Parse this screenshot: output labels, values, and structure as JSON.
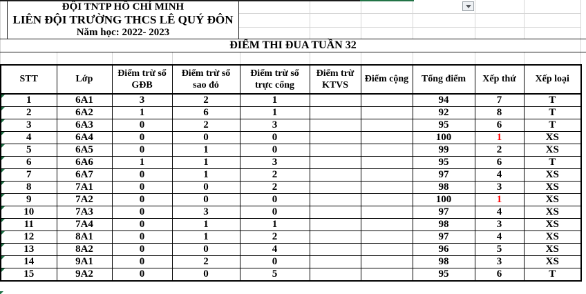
{
  "org": {
    "line1": "ĐỘI TNTP HỒ CHÍ MINH",
    "line2": "LIÊN ĐỘI TRƯỜNG THCS LÊ QUÝ ĐÔN",
    "line3": "Năm học: 2022- 2023"
  },
  "title": "ĐIỂM THI ĐUA TUẦN 32",
  "icons": {
    "dropdown": "chevron-down-icon",
    "error_indicator": "corner-triangle-icon"
  },
  "colors": {
    "rank_first_text": "#FF0000",
    "selection_border": "#217346",
    "error_triangle": "#1E7145",
    "gridline": "#d4d4d4"
  },
  "table": {
    "columns": [
      "STT",
      "Lớp",
      "Điểm trừ sổ GĐB",
      "Điểm trừ sổ sao đỏ",
      "Điểm trừ sổ trực cổng",
      "Điểm trừ KTVS",
      "Điểm cộng",
      "Tổng điểm",
      "Xếp thứ",
      "Xếp loại"
    ],
    "rows": [
      {
        "stt": "1",
        "lop": "6A1",
        "gdb": "3",
        "sao_do": "2",
        "truc_cong": "1",
        "ktvs": "",
        "cong": "",
        "tong": "94",
        "xep_thu": "7",
        "rank_red": false,
        "xep_loai": "T"
      },
      {
        "stt": "2",
        "lop": "6A2",
        "gdb": "1",
        "sao_do": "6",
        "truc_cong": "1",
        "ktvs": "",
        "cong": "",
        "tong": "92",
        "xep_thu": "8",
        "rank_red": false,
        "xep_loai": "T"
      },
      {
        "stt": "3",
        "lop": "6A3",
        "gdb": "0",
        "sao_do": "2",
        "truc_cong": "3",
        "ktvs": "",
        "cong": "",
        "tong": "95",
        "xep_thu": "6",
        "rank_red": false,
        "xep_loai": "T"
      },
      {
        "stt": "4",
        "lop": "6A4",
        "gdb": "0",
        "sao_do": "0",
        "truc_cong": "0",
        "ktvs": "",
        "cong": "",
        "tong": "100",
        "xep_thu": "1",
        "rank_red": true,
        "xep_loai": "XS"
      },
      {
        "stt": "5",
        "lop": "6A5",
        "gdb": "0",
        "sao_do": "1",
        "truc_cong": "0",
        "ktvs": "",
        "cong": "",
        "tong": "99",
        "xep_thu": "2",
        "rank_red": false,
        "xep_loai": "XS"
      },
      {
        "stt": "6",
        "lop": "6A6",
        "gdb": "1",
        "sao_do": "1",
        "truc_cong": "3",
        "ktvs": "",
        "cong": "",
        "tong": "95",
        "xep_thu": "6",
        "rank_red": false,
        "xep_loai": "T"
      },
      {
        "stt": "7",
        "lop": "6A7",
        "gdb": "0",
        "sao_do": "1",
        "truc_cong": "2",
        "ktvs": "",
        "cong": "",
        "tong": "97",
        "xep_thu": "4",
        "rank_red": false,
        "xep_loai": "XS"
      },
      {
        "stt": "8",
        "lop": "7A1",
        "gdb": "0",
        "sao_do": "0",
        "truc_cong": "2",
        "ktvs": "",
        "cong": "",
        "tong": "98",
        "xep_thu": "3",
        "rank_red": false,
        "xep_loai": "XS"
      },
      {
        "stt": "9",
        "lop": "7A2",
        "gdb": "0",
        "sao_do": "0",
        "truc_cong": "0",
        "ktvs": "",
        "cong": "",
        "tong": "100",
        "xep_thu": "1",
        "rank_red": true,
        "xep_loai": "XS"
      },
      {
        "stt": "10",
        "lop": "7A3",
        "gdb": "0",
        "sao_do": "3",
        "truc_cong": "0",
        "ktvs": "",
        "cong": "",
        "tong": "97",
        "xep_thu": "4",
        "rank_red": false,
        "xep_loai": "XS"
      },
      {
        "stt": "11",
        "lop": "7A4",
        "gdb": "0",
        "sao_do": "1",
        "truc_cong": "1",
        "ktvs": "",
        "cong": "",
        "tong": "98",
        "xep_thu": "3",
        "rank_red": false,
        "xep_loai": "XS"
      },
      {
        "stt": "12",
        "lop": "8A1",
        "gdb": "0",
        "sao_do": "1",
        "truc_cong": "2",
        "ktvs": "",
        "cong": "",
        "tong": "97",
        "xep_thu": "4",
        "rank_red": false,
        "xep_loai": "XS"
      },
      {
        "stt": "13",
        "lop": "8A2",
        "gdb": "0",
        "sao_do": "0",
        "truc_cong": "4",
        "ktvs": "",
        "cong": "",
        "tong": "96",
        "xep_thu": "5",
        "rank_red": false,
        "xep_loai": "XS"
      },
      {
        "stt": "14",
        "lop": "9A1",
        "gdb": "0",
        "sao_do": "2",
        "truc_cong": "0",
        "ktvs": "",
        "cong": "",
        "tong": "98",
        "xep_thu": "3",
        "rank_red": false,
        "xep_loai": "XS"
      },
      {
        "stt": "15",
        "lop": "9A2",
        "gdb": "0",
        "sao_do": "0",
        "truc_cong": "5",
        "ktvs": "",
        "cong": "",
        "tong": "95",
        "xep_thu": "6",
        "rank_red": false,
        "xep_loai": "T"
      }
    ]
  }
}
